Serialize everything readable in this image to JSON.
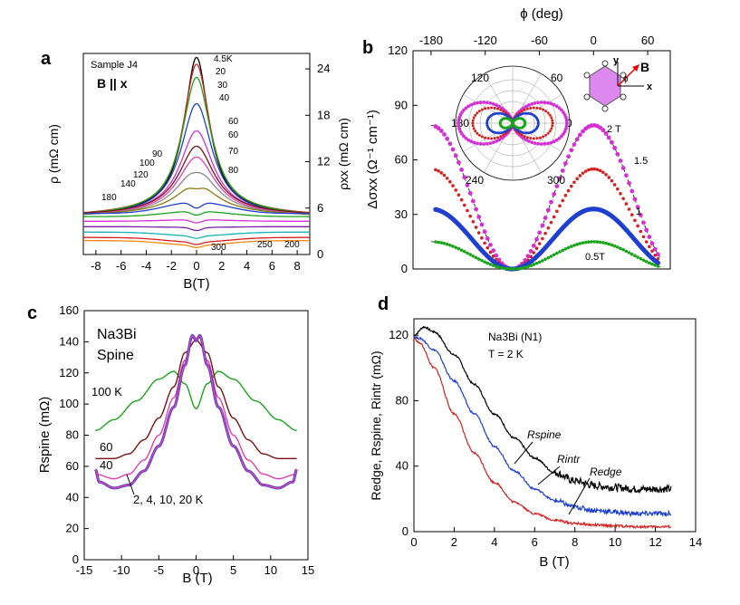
{
  "figure": {
    "colors": {
      "black": "#000000",
      "red": "#d62020",
      "green": "#1aa51a",
      "blue": "#1f3fd0",
      "magenta": "#d530d5",
      "purple": "#7a1fa8",
      "olive": "#8a7a10",
      "grey": "#8a8a8a",
      "brown": "#7a1212",
      "pink": "#e040b0",
      "cyan": "#17b3b3",
      "orange": "#f08a10",
      "lightgreen": "#6fcf3a",
      "hexfill": "#dd88ee"
    }
  },
  "chart_data": [
    {
      "panel": "a",
      "type": "line",
      "label": "a",
      "sample_label": "Sample J4",
      "field_label": "B || x",
      "xlabel": "B(T)",
      "ylabel_left": "ρ (mΩ cm)",
      "ylabel_right": "ρxx (mΩ cm)",
      "xlim": [
        -9,
        9
      ],
      "ylim": [
        0,
        26
      ],
      "xticks": [
        "-8",
        "-6",
        "-4",
        "-2",
        "0",
        "2",
        "4",
        "6",
        "8"
      ],
      "xtick_values": [
        -8,
        -6,
        -4,
        -2,
        0,
        2,
        4,
        6,
        8
      ],
      "yticks_right": [
        "0",
        "6",
        "12",
        "18",
        "24"
      ],
      "ytick_values": [
        0,
        6,
        12,
        18,
        24
      ],
      "series": [
        {
          "name": "4.5K",
          "peak": 25.5,
          "edge": 5.4,
          "dip": 0,
          "color": "#000000"
        },
        {
          "name": "20",
          "peak": 24.6,
          "edge": 5.4,
          "dip": 0,
          "color": "#d62020"
        },
        {
          "name": "30",
          "peak": 22.9,
          "edge": 5.3,
          "dip": 0,
          "color": "#1aa51a"
        },
        {
          "name": "40",
          "peak": 19.5,
          "edge": 5.2,
          "dip": 0,
          "color": "#1f3fd0"
        },
        {
          "name": "60",
          "peak": 16.0,
          "edge": 5.3,
          "dip": 0,
          "color": "#d530d5"
        },
        {
          "name": "60",
          "peak": 14.0,
          "edge": 5.4,
          "dip": 0,
          "color": "#7a1212"
        },
        {
          "name": "70",
          "peak": 12.6,
          "edge": 5.3,
          "dip": 0,
          "color": "#e040b0"
        },
        {
          "name": "80",
          "peak": 11.0,
          "edge": 5.3,
          "dip": 0.4,
          "color": "#8a8a8a"
        },
        {
          "name": "90",
          "peak": 9.1,
          "edge": 5.4,
          "dip": 0.6,
          "color": "#8a7a10"
        },
        {
          "name": "100",
          "peak": 6.8,
          "edge": 5.3,
          "dip": 0.8,
          "color": "#1f3fd0"
        },
        {
          "name": "120",
          "peak": 5.6,
          "edge": 4.9,
          "dip": 0.5,
          "color": "#1aa51a"
        },
        {
          "name": "140",
          "peak": 4.5,
          "edge": 4.3,
          "dip": 0.4,
          "color": "#d530d5"
        },
        {
          "name": "180",
          "peak": 3.5,
          "edge": 3.6,
          "dip": 0.4,
          "color": "#7a1fa8"
        },
        {
          "name": "200",
          "peak": 2.4,
          "edge": 2.9,
          "dip": 0.3,
          "color": "#17b3b3"
        },
        {
          "name": "250",
          "peak": 1.6,
          "edge": 2.2,
          "dip": 0.3,
          "color": "#d62020"
        },
        {
          "name": "300",
          "peak": 1.2,
          "edge": 1.8,
          "dip": 0.3,
          "color": "#f08a10"
        }
      ]
    },
    {
      "panel": "b",
      "type": "scatter",
      "label": "b",
      "xlabel_top": "ϕ (deg)",
      "ylabel": "Δσxx (Ω⁻¹ cm⁻¹)",
      "xlim": [
        -200,
        85
      ],
      "ylim": [
        0,
        120
      ],
      "xticks": [
        "-180",
        "-120",
        "-60",
        "0",
        "60"
      ],
      "xtick_values": [
        -180,
        -120,
        -60,
        0,
        60
      ],
      "yticks": [
        "0",
        "30",
        "60",
        "90",
        "120"
      ],
      "ytick_values": [
        0,
        30,
        60,
        90,
        120
      ],
      "series": [
        {
          "name": "2 T",
          "amplitude": 79,
          "color": "#d530d5"
        },
        {
          "name": "1.5",
          "amplitude": 55,
          "color": "#d62020"
        },
        {
          "name": "1",
          "amplitude": 33,
          "color": "#1f3fd0"
        },
        {
          "name": "0.5T",
          "amplitude": 15,
          "color": "#1aa51a"
        }
      ],
      "polar_inset": {
        "angle_labels": [
          "120",
          "60",
          "180",
          "0",
          "240",
          "300"
        ],
        "series_colors": [
          "#d530d5",
          "#d62020",
          "#1f3fd0",
          "#1aa51a"
        ]
      },
      "crystal_inset": {
        "axis_x": "x",
        "axis_y": "y",
        "field": "B",
        "angle": "ϕ"
      }
    },
    {
      "panel": "c",
      "type": "line",
      "label": "c",
      "title_line1": "Na3Bi",
      "title_line2": "Spine",
      "xlabel": "B (T)",
      "ylabel": "Rspine (mΩ)",
      "xlim": [
        -15,
        15
      ],
      "ylim": [
        0,
        160
      ],
      "xticks": [
        "-15",
        "-10",
        "-5",
        "0",
        "5",
        "10",
        "15"
      ],
      "xtick_values": [
        -15,
        -10,
        -5,
        0,
        5,
        10,
        15
      ],
      "yticks": [
        "0",
        "20",
        "40",
        "60",
        "80",
        "100",
        "120",
        "140",
        "160"
      ],
      "ytick_values": [
        0,
        20,
        40,
        60,
        80,
        100,
        120,
        140,
        160
      ],
      "series": [
        {
          "name": "100 K",
          "color": "#1aa51a",
          "x": [
            -13.5,
            -11,
            -8,
            -5,
            -3,
            -1.5,
            0,
            1.5,
            3,
            5,
            8,
            11,
            13.5
          ],
          "y": [
            83,
            90,
            102,
            116,
            121,
            113,
            97,
            113,
            121,
            116,
            102,
            90,
            83
          ]
        },
        {
          "name": "60",
          "color": "#7a1212",
          "x": [
            -13.5,
            -11,
            -9,
            -7,
            -5,
            -3,
            -1.5,
            0,
            1.5,
            3,
            5,
            7,
            9,
            11,
            13.5
          ],
          "y": [
            65,
            65,
            68,
            77,
            91,
            111,
            133,
            141,
            133,
            111,
            91,
            77,
            68,
            65,
            65
          ]
        },
        {
          "name": "40",
          "color": "#e040b0",
          "x": [
            -13.5,
            -11,
            -9,
            -7,
            -5,
            -3,
            -1.5,
            -0.5,
            0,
            0.5,
            1.5,
            3,
            5,
            7,
            9,
            11,
            13.5
          ],
          "y": [
            55,
            52,
            55,
            64,
            80,
            104,
            128,
            143,
            140,
            143,
            128,
            104,
            80,
            64,
            55,
            52,
            55
          ]
        },
        {
          "name": "2, 4, 10, 20 K",
          "color": "#7a1fa8",
          "x": [
            -13.5,
            -13,
            -11,
            -9,
            -7,
            -5,
            -3,
            -1.5,
            -0.5,
            0,
            0.5,
            1.5,
            3,
            5,
            7,
            9,
            11,
            13,
            13.5
          ],
          "y": [
            58,
            50,
            46,
            48,
            57,
            73,
            98,
            125,
            144,
            141,
            144,
            125,
            98,
            73,
            57,
            48,
            46,
            50,
            58
          ]
        }
      ],
      "annotations": [
        "100 K",
        "60",
        "40",
        "2, 4, 10, 20 K"
      ]
    },
    {
      "panel": "d",
      "type": "line",
      "label": "d",
      "title_line1": "Na3Bi (N1)",
      "title_line2": "T = 2 K",
      "xlabel": "B (T)",
      "ylabel": "Redge, Rspine, Rintr (mΩ)",
      "xlim": [
        0,
        14
      ],
      "ylim": [
        0,
        130
      ],
      "xticks": [
        "0",
        "2",
        "4",
        "6",
        "8",
        "10",
        "12",
        "14"
      ],
      "xtick_values": [
        0,
        2,
        4,
        6,
        8,
        10,
        12,
        14
      ],
      "yticks": [
        "0",
        "40",
        "80",
        "120"
      ],
      "ytick_values": [
        0,
        40,
        80,
        120
      ],
      "series": [
        {
          "name": "Rspine",
          "color": "#000000",
          "x": [
            0,
            0.5,
            1,
            2,
            3,
            4,
            5,
            6,
            7,
            8,
            9,
            10,
            11,
            12,
            12.8
          ],
          "y": [
            120,
            125,
            122,
            108,
            90,
            72,
            57,
            45,
            36,
            31,
            28,
            27,
            26,
            26,
            26
          ]
        },
        {
          "name": "Rintr",
          "color": "#1f3fd0",
          "x": [
            0,
            0.3,
            1,
            2,
            3,
            4,
            5,
            6,
            7,
            8,
            9,
            10,
            11,
            12,
            12.8
          ],
          "y": [
            119,
            118,
            111,
            92,
            72,
            52,
            37,
            26,
            19,
            15,
            13,
            12,
            11,
            11,
            11
          ]
        },
        {
          "name": "Redge",
          "color": "#d62020",
          "x": [
            0,
            0.3,
            1,
            2,
            3,
            4,
            5,
            6,
            7,
            8,
            9,
            10,
            11,
            12,
            12.8
          ],
          "y": [
            118,
            115,
            100,
            72,
            48,
            30,
            18,
            11,
            7,
            5,
            4,
            3.5,
            3,
            3,
            3
          ]
        }
      ],
      "labels": [
        "Rspine",
        "Rintr",
        "Redge"
      ]
    }
  ]
}
